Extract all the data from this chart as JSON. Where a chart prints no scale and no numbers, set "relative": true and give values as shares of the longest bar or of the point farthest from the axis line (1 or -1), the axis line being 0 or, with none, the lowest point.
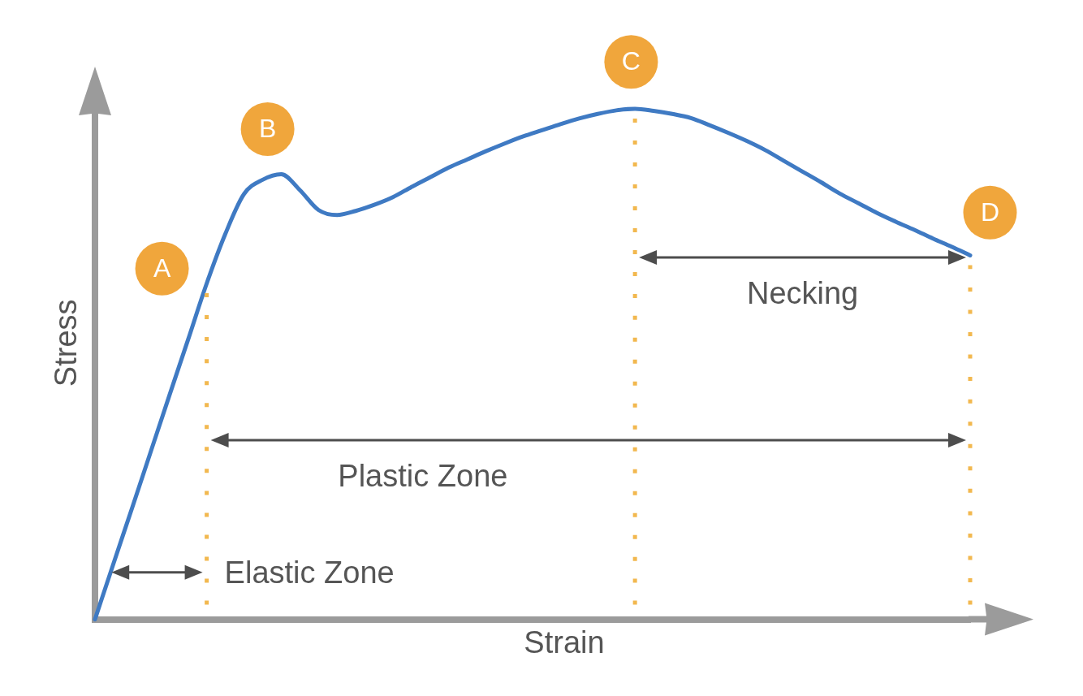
{
  "chart_data": {
    "type": "line",
    "xlabel": "Strain",
    "ylabel": "Stress",
    "relative": true,
    "marker": "none",
    "color": "#3f7ac3",
    "categories": [
      null,
      null,
      null,
      null,
      null,
      null,
      null,
      null,
      null,
      null,
      null,
      null,
      null,
      null,
      null,
      null,
      null,
      null,
      null,
      null,
      null,
      null,
      null,
      null,
      null,
      null,
      null,
      null,
      null,
      null,
      null,
      null,
      null,
      null,
      null,
      null,
      null,
      null,
      null,
      null,
      null,
      null,
      null,
      null,
      null,
      null,
      null,
      null
    ],
    "values": [
      0,
      0.11,
      0.219,
      0.329,
      0.439,
      0.548,
      0.658,
      0.755,
      0.833,
      0.861,
      0.872,
      0.841,
      0.802,
      0.792,
      0.8,
      0.812,
      0.827,
      0.847,
      0.866,
      0.885,
      0.901,
      0.917,
      0.932,
      0.946,
      0.958,
      0.97,
      0.981,
      0.99,
      0.997,
      1,
      0.996,
      0.99,
      0.982,
      0.968,
      0.953,
      0.937,
      0.919,
      0.898,
      0.877,
      0.856,
      0.834,
      0.815,
      0.796,
      0.779,
      0.763,
      0.746,
      0.73,
      0.713
    ],
    "annotations": [
      "Elastic Zone",
      "Plastic Zone",
      "Necking",
      "A",
      "B",
      "C",
      "D"
    ]
  }
}
